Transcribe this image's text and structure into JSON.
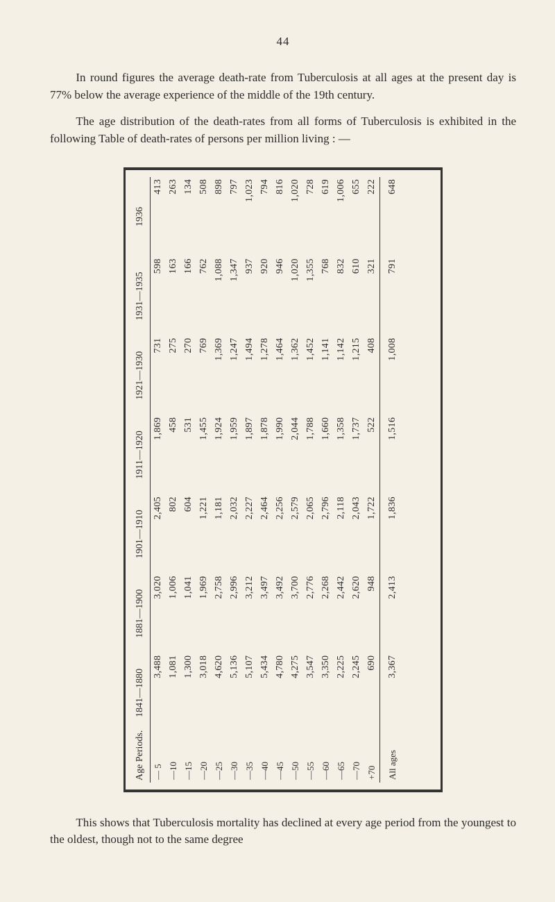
{
  "page_number": "44",
  "paragraphs": [
    "In round figures the average death-rate from Tuberculosis at all ages at the present day is 77% below the average experience of the middle of the 19th century.",
    "The age distribution of the death-rates from all forms of Tuberculosis is exhibited in the following Table of death-rates of persons per million living : —"
  ],
  "caption_after": "This shows that Tuberculosis mortality has declined at every age period from the youngest to the oldest, though not to the same degree",
  "mortality_table": {
    "type": "table",
    "rotated_deg": -90,
    "border_color": "#333333",
    "background_color": "#f5f0e6",
    "font_family": "Times New Roman",
    "header_left": "Age Periods.",
    "periods": [
      "1841—1880",
      "1881—1900",
      "1901—1910",
      "1911—1920",
      "1921—1930",
      "1931—1935",
      "1936"
    ],
    "age_rows": [
      "— 5",
      "—10",
      "—15",
      "—20",
      "—25",
      "—30",
      "—35",
      "—40",
      "—45",
      "—50",
      "—55",
      "—60",
      "—65",
      "—70",
      "+70"
    ],
    "values": [
      [
        "3,488",
        "3,020",
        "2,405",
        "1,869",
        "731",
        "598",
        "413"
      ],
      [
        "1,081",
        "1,006",
        "802",
        "458",
        "275",
        "163",
        "263"
      ],
      [
        "1,300",
        "1,041",
        "604",
        "531",
        "270",
        "166",
        "134"
      ],
      [
        "3,018",
        "1,969",
        "1,221",
        "1,455",
        "769",
        "762",
        "508"
      ],
      [
        "4,620",
        "2,758",
        "1,181",
        "1,924",
        "1,369",
        "1,088",
        "898"
      ],
      [
        "5,136",
        "2,996",
        "2,032",
        "1,959",
        "1,247",
        "1,347",
        "797"
      ],
      [
        "5,107",
        "3,212",
        "2,227",
        "1,897",
        "1,494",
        "937",
        "1,023"
      ],
      [
        "5,434",
        "3,497",
        "2,464",
        "1,878",
        "1,278",
        "920",
        "794"
      ],
      [
        "4,780",
        "3,492",
        "2,256",
        "1,990",
        "1,464",
        "946",
        "816"
      ],
      [
        "4,275",
        "3,700",
        "2,579",
        "2,044",
        "1,362",
        "1,020",
        "1,020"
      ],
      [
        "3,547",
        "2,776",
        "2,065",
        "1,788",
        "1,452",
        "1,355",
        "728"
      ],
      [
        "3,350",
        "2,268",
        "2,796",
        "1,660",
        "1,141",
        "768",
        "619"
      ],
      [
        "2,225",
        "2,442",
        "2,118",
        "1,358",
        "1,142",
        "832",
        "1,006"
      ],
      [
        "2,245",
        "2,620",
        "2,043",
        "1,737",
        "1,215",
        "610",
        "655"
      ],
      [
        "690",
        "948",
        "1,722",
        "522",
        "408",
        "321",
        "222"
      ]
    ],
    "all_ages_label": "All ages",
    "all_ages": [
      "3,367",
      "2,413",
      "1,836",
      "1,516",
      "1,008",
      "791",
      "648"
    ]
  }
}
